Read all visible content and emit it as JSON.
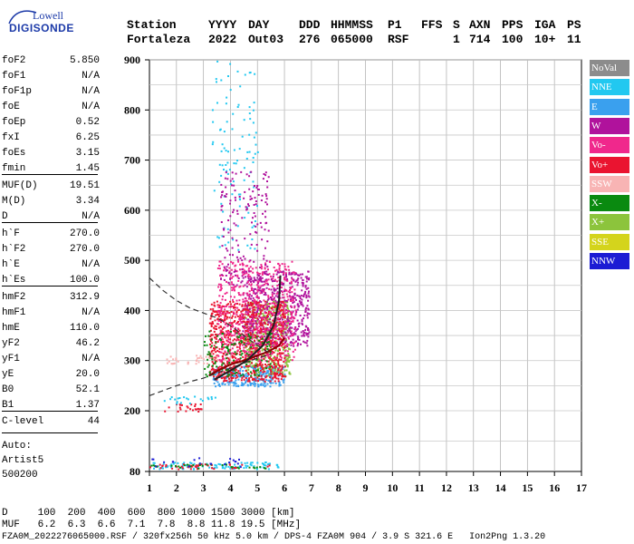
{
  "logo": {
    "top": "Lowell",
    "bottom": "DIGISONDE"
  },
  "header": {
    "labels": [
      "Station",
      "YYYY",
      "DAY",
      "DDD",
      "HHMMSS",
      "P1",
      "FFS",
      "S",
      "AXN",
      "PPS",
      "IGA",
      "PS"
    ],
    "values": [
      "Fortaleza",
      "2022",
      "Out03",
      "276",
      "065000",
      "RSF",
      "",
      "1",
      "714",
      "100",
      "10+",
      "11"
    ]
  },
  "params": [
    {
      "name": "foF2",
      "value": "5.850"
    },
    {
      "name": "foF1",
      "value": "N/A"
    },
    {
      "name": "foF1p",
      "value": "N/A"
    },
    {
      "name": "foE",
      "value": "N/A"
    },
    {
      "name": "foEp",
      "value": "0.52"
    },
    {
      "name": "fxI",
      "value": "6.25"
    },
    {
      "name": "foEs",
      "value": "3.15"
    },
    {
      "name": "fmin",
      "value": "1.45"
    },
    {
      "name": "MUF(D)",
      "value": "19.51"
    },
    {
      "name": "M(D)",
      "value": "3.34"
    },
    {
      "name": "D",
      "value": "N/A"
    },
    {
      "name": "h`F",
      "value": "270.0"
    },
    {
      "name": "h`F2",
      "value": "270.0"
    },
    {
      "name": "h`E",
      "value": "N/A"
    },
    {
      "name": "h`Es",
      "value": "100.0"
    },
    {
      "name": "hmF2",
      "value": "312.9"
    },
    {
      "name": "hmF1",
      "value": "N/A"
    },
    {
      "name": "hmE",
      "value": "110.0"
    },
    {
      "name": "yF2",
      "value": "46.2"
    },
    {
      "name": "yF1",
      "value": "N/A"
    },
    {
      "name": "yE",
      "value": "20.0"
    },
    {
      "name": "B0",
      "value": "52.1"
    },
    {
      "name": "B1",
      "value": "1.37"
    },
    {
      "name": "C-level",
      "value": "44"
    }
  ],
  "autoscale": {
    "label": "Auto:",
    "program": "Artist5",
    "version": "500200"
  },
  "footer": {
    "d_row": "D     100  200  400  600  800 1000 1500 3000 [km]",
    "muf_row": "MUF   6.2  6.3  6.6  7.1  7.8  8.8 11.8 19.5 [MHz]",
    "file_row": "FZA0M_2022276065000.RSF / 320fx256h 50 kHz 5.0 km / DPS-4 FZA0M 904 / 3.9 S 321.6 E   Ion2Png 1.3.20"
  },
  "legend": [
    {
      "label": "NoVal",
      "color": "#8c8c8c"
    },
    {
      "label": "NNE",
      "color": "#22c8f0"
    },
    {
      "label": "E",
      "color": "#3aa0ee"
    },
    {
      "label": "W",
      "color": "#b0129c"
    },
    {
      "label": "Vo-",
      "color": "#f0288c"
    },
    {
      "label": "Vo+",
      "color": "#ea1430"
    },
    {
      "label": "SSW",
      "color": "#f8b4b4"
    },
    {
      "label": "X-",
      "color": "#0a8a10"
    },
    {
      "label": "X+",
      "color": "#8cc43c"
    },
    {
      "label": "SSE",
      "color": "#d4d41c"
    },
    {
      "label": "NNW",
      "color": "#1c1cd4"
    }
  ],
  "chart_data": {
    "type": "scatter",
    "xlabel": "",
    "ylabel": "",
    "xlim": [
      1,
      17
    ],
    "ylim": [
      80,
      900
    ],
    "x_ticks": [
      1,
      2,
      3,
      4,
      5,
      6,
      7,
      8,
      9,
      10,
      11,
      12,
      13,
      14,
      15,
      16,
      17
    ],
    "y_ticks": [
      80,
      200,
      300,
      400,
      500,
      600,
      700,
      800,
      900
    ],
    "grid": true,
    "legend_position": "right",
    "clusters": [
      {
        "series": "E",
        "x": [
          3.3,
          6.0
        ],
        "y": [
          250,
          290
        ],
        "density": 0.9
      },
      {
        "series": "X+",
        "x": [
          4.5,
          6.2
        ],
        "y": [
          270,
          420
        ],
        "density": 0.6
      },
      {
        "series": "W",
        "x": [
          4.4,
          6.9
        ],
        "y": [
          330,
          480
        ],
        "density": 0.55
      },
      {
        "series": "Vo+",
        "x": [
          3.2,
          6.0
        ],
        "y": [
          260,
          420
        ],
        "density": 0.7
      },
      {
        "series": "Vo-",
        "x": [
          3.5,
          6.4
        ],
        "y": [
          300,
          500
        ],
        "density": 0.35
      },
      {
        "series": "X-",
        "x": [
          3.0,
          5.5
        ],
        "y": [
          270,
          360
        ],
        "density": 0.2
      },
      {
        "series": "NNE",
        "x": [
          3.3,
          5.0
        ],
        "y": [
          520,
          900
        ],
        "density": 0.06
      },
      {
        "series": "W",
        "x": [
          3.6,
          5.4
        ],
        "y": [
          450,
          680
        ],
        "density": 0.15
      },
      {
        "series": "Vo+",
        "x": [
          1.5,
          3.0
        ],
        "y": [
          200,
          215
        ],
        "density": 0.4
      },
      {
        "series": "SSW",
        "x": [
          1.5,
          4.0
        ],
        "y": [
          295,
          312
        ],
        "density": 0.3
      },
      {
        "series": "NNE",
        "x": [
          1.5,
          3.5
        ],
        "y": [
          215,
          230
        ],
        "density": 0.25
      },
      {
        "series": "NNE",
        "x": [
          1.0,
          5.8
        ],
        "y": [
          86,
          100
        ],
        "density": 0.55
      },
      {
        "series": "Vo+",
        "x": [
          1.0,
          5.8
        ],
        "y": [
          86,
          96
        ],
        "density": 0.3
      },
      {
        "series": "X-",
        "x": [
          1.0,
          5.5
        ],
        "y": [
          86,
          96
        ],
        "density": 0.25
      },
      {
        "series": "NNW",
        "x": [
          1.0,
          4.5
        ],
        "y": [
          90,
          108
        ],
        "density": 0.12
      }
    ],
    "traces": [
      {
        "name": "virtual-height-trace",
        "style": "solid",
        "color": "#8b0000",
        "points": [
          [
            3.2,
            270
          ],
          [
            3.6,
            282
          ],
          [
            4.0,
            292
          ],
          [
            4.5,
            300
          ],
          [
            5.0,
            310
          ],
          [
            5.4,
            318
          ],
          [
            5.8,
            330
          ],
          [
            6.0,
            345
          ]
        ]
      },
      {
        "name": "profile-lower",
        "style": "dashed",
        "color": "#333333",
        "points": [
          [
            1.0,
            230
          ],
          [
            1.5,
            240
          ],
          [
            2.0,
            250
          ],
          [
            2.5,
            258
          ],
          [
            3.0,
            265
          ],
          [
            3.5,
            275
          ],
          [
            4.0,
            285
          ],
          [
            4.5,
            295
          ],
          [
            5.0,
            305
          ],
          [
            5.5,
            312.9
          ]
        ]
      },
      {
        "name": "profile-upper",
        "style": "dashed",
        "color": "#333333",
        "points": [
          [
            1.0,
            465
          ],
          [
            1.5,
            440
          ],
          [
            2.0,
            420
          ],
          [
            2.5,
            405
          ],
          [
            3.0,
            395
          ],
          [
            3.5,
            385
          ],
          [
            4.0,
            370
          ],
          [
            4.5,
            350
          ],
          [
            5.0,
            330
          ],
          [
            5.5,
            312.9
          ]
        ]
      },
      {
        "name": "dark-curve",
        "style": "solid",
        "color": "#202020",
        "points": [
          [
            3.4,
            262
          ],
          [
            4.0,
            280
          ],
          [
            4.6,
            300
          ],
          [
            5.2,
            330
          ],
          [
            5.6,
            370
          ],
          [
            5.8,
            420
          ],
          [
            5.85,
            470
          ]
        ]
      }
    ]
  }
}
